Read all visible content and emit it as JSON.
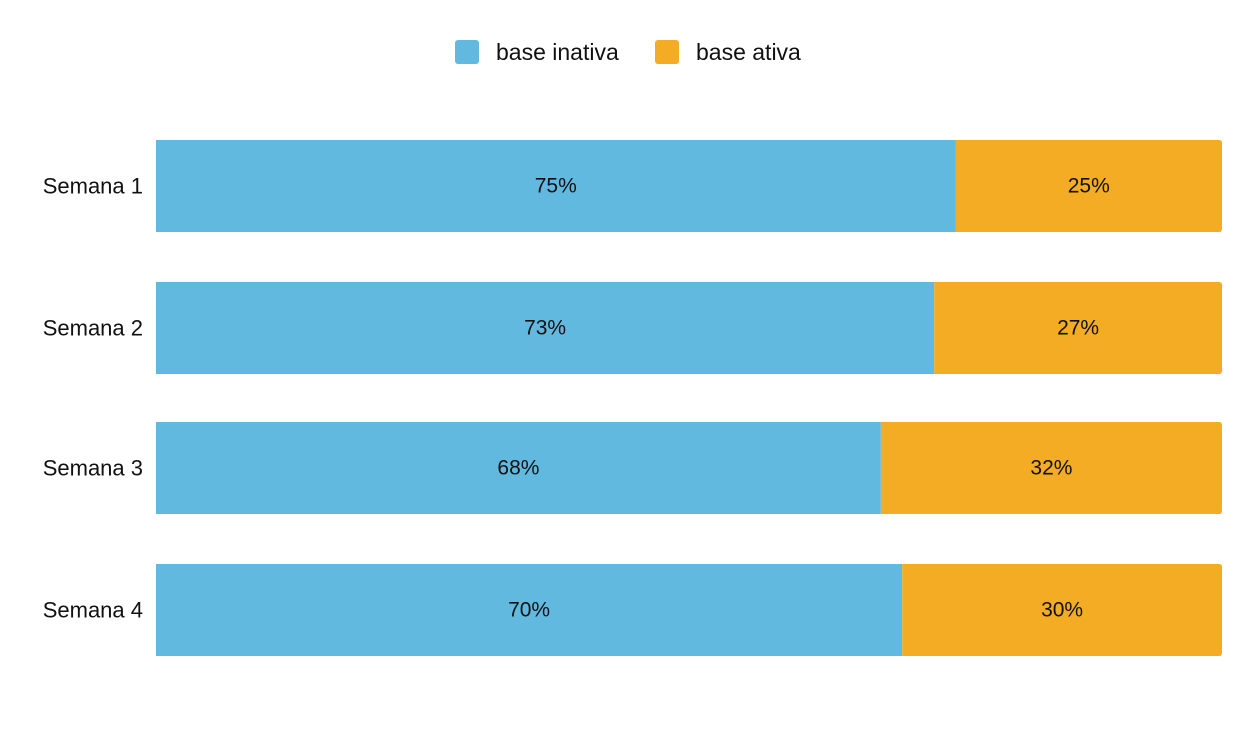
{
  "chart_data": {
    "type": "bar",
    "orientation": "horizontal",
    "stacked": true,
    "categories": [
      "Semana 1",
      "Semana 2",
      "Semana 3",
      "Semana 4"
    ],
    "series": [
      {
        "name": "base inativa",
        "color": "#62b9e0",
        "values": [
          75,
          73,
          68,
          70
        ],
        "labels": [
          "75%",
          "73%",
          "68%",
          "70%"
        ]
      },
      {
        "name": "base ativa",
        "color": "#f3ac23",
        "values": [
          25,
          27,
          32,
          30
        ],
        "labels": [
          "25%",
          "27%",
          "32%",
          "30%"
        ]
      }
    ],
    "xlim": [
      0,
      100
    ],
    "grid": false,
    "legend_position": "top-center",
    "title": "",
    "xlabel": "",
    "ylabel": ""
  }
}
